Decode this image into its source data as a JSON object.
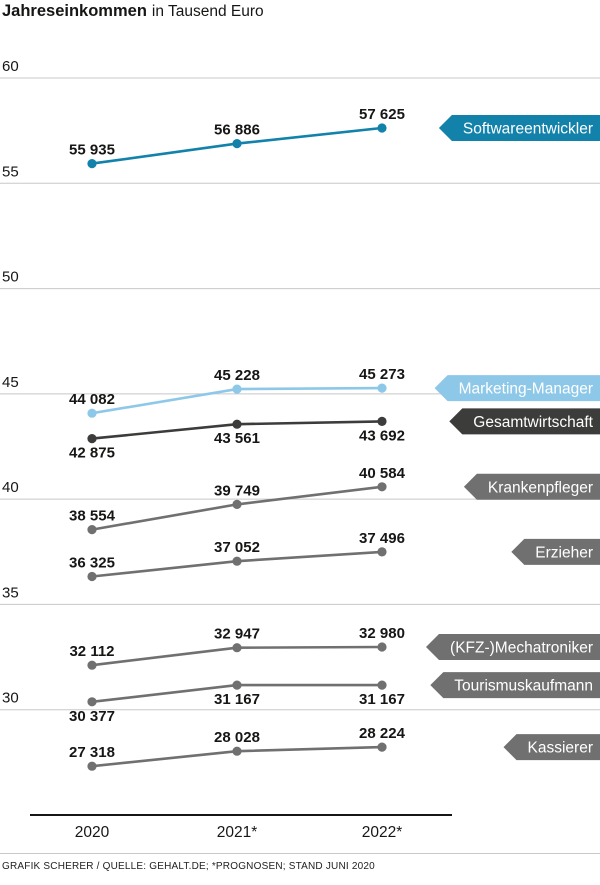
{
  "header": {
    "title": "Jahreseinkommen",
    "subtitle": "in Tausend Euro"
  },
  "footer": {
    "credit": "GRAFIK SCHERER / QUELLE: GEHALT.DE; *PROGNOSEN; STAND JUNI 2020"
  },
  "colors": {
    "accent_teal": "#1282ab",
    "accent_lightblue": "#8ec8e9",
    "dark_gray": "#3c3c3b",
    "mid_gray": "#717070",
    "grid_gray": "#c8c8c8"
  },
  "chart_data": {
    "type": "line",
    "title": "Jahreseinkommen in Tausend Euro",
    "unit": "Tausend Euro",
    "x_categories": [
      "2020",
      "2021*",
      "2022*"
    ],
    "y_axis": {
      "min": 25,
      "max": 61,
      "ticks": [
        30,
        35,
        40,
        45,
        50,
        55,
        60
      ]
    },
    "grid": true,
    "legend_position": "right-arrow-tags",
    "series": [
      {
        "name": "Softwareentwickler",
        "color": "#1282ab",
        "values": [
          55935,
          56886,
          57625
        ],
        "value_labels": [
          "55 935",
          "56 886",
          "57 625"
        ],
        "label_side": [
          "above",
          "above",
          "above"
        ]
      },
      {
        "name": "Marketing-Manager",
        "color": "#8ec8e9",
        "values": [
          44082,
          45228,
          45273
        ],
        "value_labels": [
          "44 082",
          "45 228",
          "45 273"
        ],
        "label_side": [
          "above",
          "above",
          "above"
        ]
      },
      {
        "name": "Gesamtwirtschaft",
        "color": "#3c3c3b",
        "values": [
          42875,
          43561,
          43692
        ],
        "value_labels": [
          "42 875",
          "43 561",
          "43 692"
        ],
        "label_side": [
          "below",
          "below",
          "below"
        ]
      },
      {
        "name": "Krankenpfleger",
        "color": "#717070",
        "values": [
          38554,
          39749,
          40584
        ],
        "value_labels": [
          "38 554",
          "39 749",
          "40 584"
        ],
        "label_side": [
          "above",
          "above",
          "above"
        ]
      },
      {
        "name": "Erzieher",
        "color": "#717070",
        "values": [
          36325,
          37052,
          37496
        ],
        "value_labels": [
          "36 325",
          "37 052",
          "37 496"
        ],
        "label_side": [
          "above",
          "above",
          "above"
        ]
      },
      {
        "name": "(KFZ-)Mechatroniker",
        "color": "#717070",
        "values": [
          32112,
          32947,
          32980
        ],
        "value_labels": [
          "32 112",
          "32 947",
          "32 980"
        ],
        "label_side": [
          "above",
          "above",
          "above"
        ]
      },
      {
        "name": "Tourismuskaufmann",
        "color": "#717070",
        "values": [
          30377,
          31167,
          31167
        ],
        "value_labels": [
          "30 377",
          "31 167",
          "31 167"
        ],
        "label_side": [
          "below",
          "below",
          "below"
        ]
      },
      {
        "name": "Kassierer",
        "color": "#717070",
        "values": [
          27318,
          28028,
          28224
        ],
        "value_labels": [
          "27 318",
          "28 028",
          "28 224"
        ],
        "label_side": [
          "above",
          "above",
          "above"
        ]
      }
    ]
  }
}
